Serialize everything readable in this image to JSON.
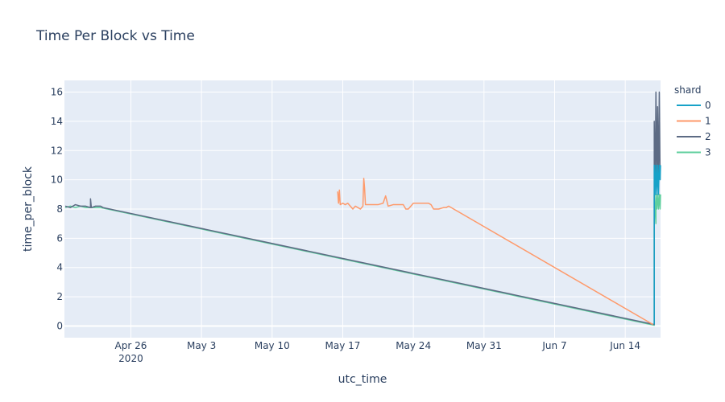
{
  "chart_data": {
    "type": "line",
    "title": "Time Per Block vs Time",
    "xlabel": "utc_time",
    "ylabel": "time_per_block",
    "grid": true,
    "legend": {
      "title": "shard",
      "placement": "right"
    },
    "xlim": [
      "2020-04-19T10:00",
      "2020-06-17T12:00"
    ],
    "ylim": [
      -0.8,
      16.8
    ],
    "x_ticks": [
      {
        "date": "2020-04-26",
        "label": "Apr 26",
        "sublabel": "2020"
      },
      {
        "date": "2020-05-03",
        "label": "May 3"
      },
      {
        "date": "2020-05-10",
        "label": "May 10"
      },
      {
        "date": "2020-05-17",
        "label": "May 17"
      },
      {
        "date": "2020-05-24",
        "label": "May 24"
      },
      {
        "date": "2020-05-31",
        "label": "May 31"
      },
      {
        "date": "2020-06-07",
        "label": "Jun 7"
      },
      {
        "date": "2020-06-14",
        "label": "Jun 14"
      }
    ],
    "y_ticks": [
      0,
      2,
      4,
      6,
      8,
      10,
      12,
      14,
      16
    ],
    "series": [
      {
        "name": "0",
        "color": "#17a2c8",
        "points": [
          [
            "2020-06-16T21:00",
            0.1
          ],
          [
            "2020-06-16T21:00",
            9.0
          ],
          [
            "2020-06-16T21:00",
            11.0
          ],
          [
            "2020-06-16T23:00",
            9.0
          ],
          [
            "2020-06-17T01:00",
            11.0
          ],
          [
            "2020-06-17T03:00",
            9.0
          ],
          [
            "2020-06-17T05:00",
            11.0
          ],
          [
            "2020-06-17T07:00",
            9.0
          ],
          [
            "2020-06-17T09:00",
            11.0
          ],
          [
            "2020-06-17T11:00",
            10.0
          ],
          [
            "2020-06-17T12:00",
            11.0
          ]
        ]
      },
      {
        "name": "1",
        "color": "#fe9a6b",
        "points": [
          [
            "2020-05-16T12:00",
            9.2
          ],
          [
            "2020-05-16T14:00",
            8.4
          ],
          [
            "2020-05-16T16:00",
            9.3
          ],
          [
            "2020-05-16T18:00",
            8.3
          ],
          [
            "2020-05-17T00:00",
            8.4
          ],
          [
            "2020-05-17T06:00",
            8.3
          ],
          [
            "2020-05-17T12:00",
            8.4
          ],
          [
            "2020-05-17T18:00",
            8.2
          ],
          [
            "2020-05-18T00:00",
            8.0
          ],
          [
            "2020-05-18T06:00",
            8.2
          ],
          [
            "2020-05-18T12:00",
            8.1
          ],
          [
            "2020-05-18T18:00",
            8.0
          ],
          [
            "2020-05-19T00:00",
            8.2
          ],
          [
            "2020-05-19T02:00",
            10.1
          ],
          [
            "2020-05-19T04:00",
            9.4
          ],
          [
            "2020-05-19T06:00",
            8.3
          ],
          [
            "2020-05-19T12:00",
            8.3
          ],
          [
            "2020-05-19T18:00",
            8.3
          ],
          [
            "2020-05-20T00:00",
            8.3
          ],
          [
            "2020-05-20T12:00",
            8.3
          ],
          [
            "2020-05-21T00:00",
            8.4
          ],
          [
            "2020-05-21T06:00",
            8.9
          ],
          [
            "2020-05-21T12:00",
            8.2
          ],
          [
            "2020-05-22T00:00",
            8.3
          ],
          [
            "2020-05-22T12:00",
            8.3
          ],
          [
            "2020-05-23T00:00",
            8.3
          ],
          [
            "2020-05-23T06:00",
            8.0
          ],
          [
            "2020-05-23T12:00",
            8.0
          ],
          [
            "2020-05-24T00:00",
            8.4
          ],
          [
            "2020-05-24T12:00",
            8.4
          ],
          [
            "2020-05-25T00:00",
            8.4
          ],
          [
            "2020-05-25T12:00",
            8.4
          ],
          [
            "2020-05-25T18:00",
            8.3
          ],
          [
            "2020-05-26T00:00",
            8.0
          ],
          [
            "2020-05-26T12:00",
            8.0
          ],
          [
            "2020-05-27T00:00",
            8.1
          ],
          [
            "2020-05-27T06:00",
            8.1
          ],
          [
            "2020-05-27T12:00",
            8.2
          ],
          [
            "2020-05-28T00:00",
            8.0
          ],
          [
            "2020-06-16T18:00",
            0.1
          ]
        ]
      },
      {
        "name": "2",
        "color": "#5d6b84",
        "points": [
          [
            "2020-04-19T12:00",
            8.2
          ],
          [
            "2020-04-20T00:00",
            8.1
          ],
          [
            "2020-04-20T12:00",
            8.3
          ],
          [
            "2020-04-21T00:00",
            8.2
          ],
          [
            "2020-04-21T12:00",
            8.2
          ],
          [
            "2020-04-22T00:00",
            8.1
          ],
          [
            "2020-04-22T00:00",
            8.7
          ],
          [
            "2020-04-22T02:00",
            8.1
          ],
          [
            "2020-04-22T12:00",
            8.2
          ],
          [
            "2020-04-23T00:00",
            8.2
          ],
          [
            "2020-04-23T06:00",
            8.1
          ],
          [
            "2020-06-16T21:00",
            0.1
          ],
          [
            "2020-06-16T21:00",
            14.0
          ],
          [
            "2020-06-16T23:00",
            9.0
          ],
          [
            "2020-06-17T01:00",
            16.0
          ],
          [
            "2020-06-17T03:00",
            10.0
          ],
          [
            "2020-06-17T05:00",
            15.0
          ],
          [
            "2020-06-17T07:00",
            9.0
          ],
          [
            "2020-06-17T09:00",
            16.0
          ],
          [
            "2020-06-17T11:00",
            10.0
          ]
        ]
      },
      {
        "name": "3",
        "color": "#5fcf9e",
        "points": [
          [
            "2020-04-19T12:00",
            8.1
          ],
          [
            "2020-04-20T00:00",
            8.2
          ],
          [
            "2020-04-20T12:00",
            8.1
          ],
          [
            "2020-04-21T00:00",
            8.2
          ],
          [
            "2020-04-21T12:00",
            8.1
          ],
          [
            "2020-04-22T00:00",
            8.1
          ],
          [
            "2020-04-22T12:00",
            8.1
          ],
          [
            "2020-04-23T00:00",
            8.1
          ],
          [
            "2020-06-16T21:00",
            0.05
          ],
          [
            "2020-06-16T21:00",
            8.0
          ],
          [
            "2020-06-16T21:00",
            9.0
          ],
          [
            "2020-06-16T23:00",
            8.0
          ],
          [
            "2020-06-17T01:00",
            7.0
          ],
          [
            "2020-06-17T01:00",
            9.0
          ],
          [
            "2020-06-17T03:00",
            8.0
          ],
          [
            "2020-06-17T05:00",
            9.0
          ],
          [
            "2020-06-17T07:00",
            8.0
          ],
          [
            "2020-06-17T09:00",
            9.0
          ],
          [
            "2020-06-17T11:00",
            8.0
          ],
          [
            "2020-06-17T12:00",
            9.0
          ]
        ]
      }
    ]
  }
}
